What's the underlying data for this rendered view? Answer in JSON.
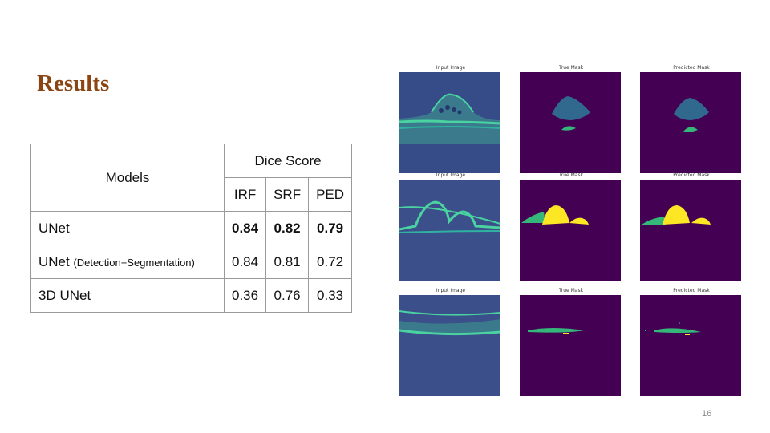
{
  "slide": {
    "title": "Results",
    "page_number": "16"
  },
  "table": {
    "models_header": "Models",
    "dice_header": "Dice Score",
    "metric_headers": [
      "IRF",
      "SRF",
      "PED"
    ],
    "rows": [
      {
        "model": "UNet",
        "suffix": "",
        "values": [
          "0.84",
          "0.82",
          "0.79"
        ],
        "bold": true
      },
      {
        "model": "UNet",
        "suffix": "(Detection+Segmentation)",
        "values": [
          "0.84",
          "0.81",
          "0.72"
        ],
        "bold": false
      },
      {
        "model": "3D UNet",
        "suffix": "",
        "values": [
          "0.36",
          "0.76",
          "0.33"
        ],
        "bold": false
      }
    ]
  },
  "figure": {
    "captions": {
      "input": "Input Image",
      "true_mask": "True Mask",
      "predicted_mask": "Predicted Mask"
    },
    "colors": {
      "mask_background": "#440154",
      "irf": "#31688e",
      "srf": "#35b779",
      "ped": "#fde725",
      "oct_background": "#3b4f8a",
      "retina_layer": "#4ad2a0"
    }
  }
}
